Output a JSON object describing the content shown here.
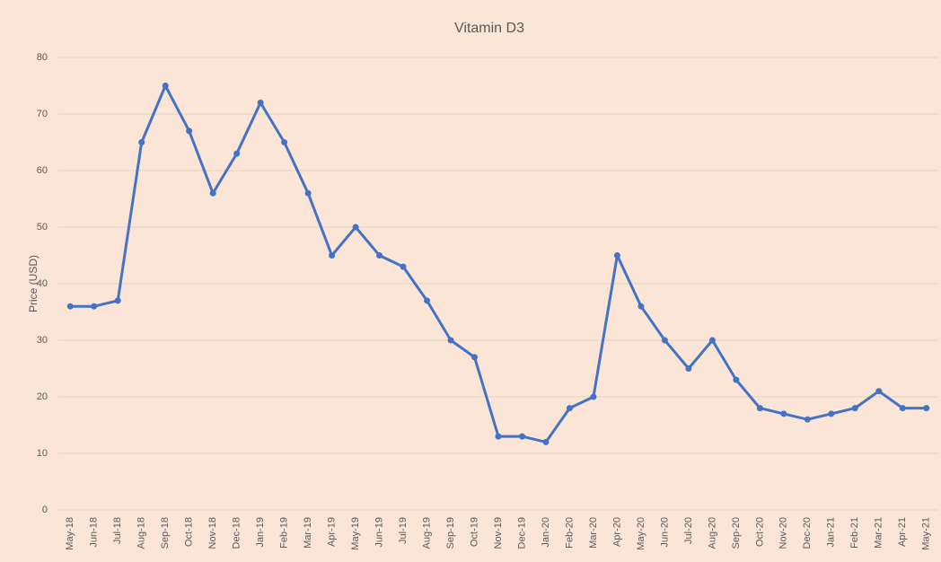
{
  "chart_data": {
    "type": "line",
    "title": "Vitamin D3",
    "y_label": "Price (USD)",
    "categories": [
      "May-18",
      "Jun-18",
      "Jul-18",
      "Aug-18",
      "Sep-18",
      "Oct-18",
      "Nov-18",
      "Dec-18",
      "Jan-19",
      "Feb-19",
      "Mar-19",
      "Apr-19",
      "May-19",
      "Jun-19",
      "Jul-19",
      "Aug-19",
      "Sep-19",
      "Oct-19",
      "Nov-19",
      "Dec-19",
      "Jan-20",
      "Feb-20",
      "Mar-20",
      "Apr-20",
      "May-20",
      "Jun-20",
      "Jul-20",
      "Aug-20",
      "Sep-20",
      "Oct-20",
      "Nov-20",
      "Dec-20",
      "Jan-21",
      "Feb-21",
      "Mar-21",
      "Apr-21",
      "May-21"
    ],
    "series": [
      {
        "name": "Vitamin D3",
        "color": "#4472c4",
        "values": [
          36,
          36,
          37,
          65,
          75,
          67,
          56,
          63,
          72,
          65,
          56,
          45,
          50,
          45,
          43,
          37,
          30,
          27,
          13,
          13,
          12,
          18,
          20,
          45,
          36,
          30,
          25,
          30,
          23,
          18,
          17,
          16,
          17,
          18,
          21,
          18,
          18
        ]
      }
    ],
    "ylim": [
      0,
      80
    ],
    "yticks": [
      0,
      10,
      20,
      30,
      40,
      50,
      60,
      70,
      80
    ],
    "grid": true
  }
}
